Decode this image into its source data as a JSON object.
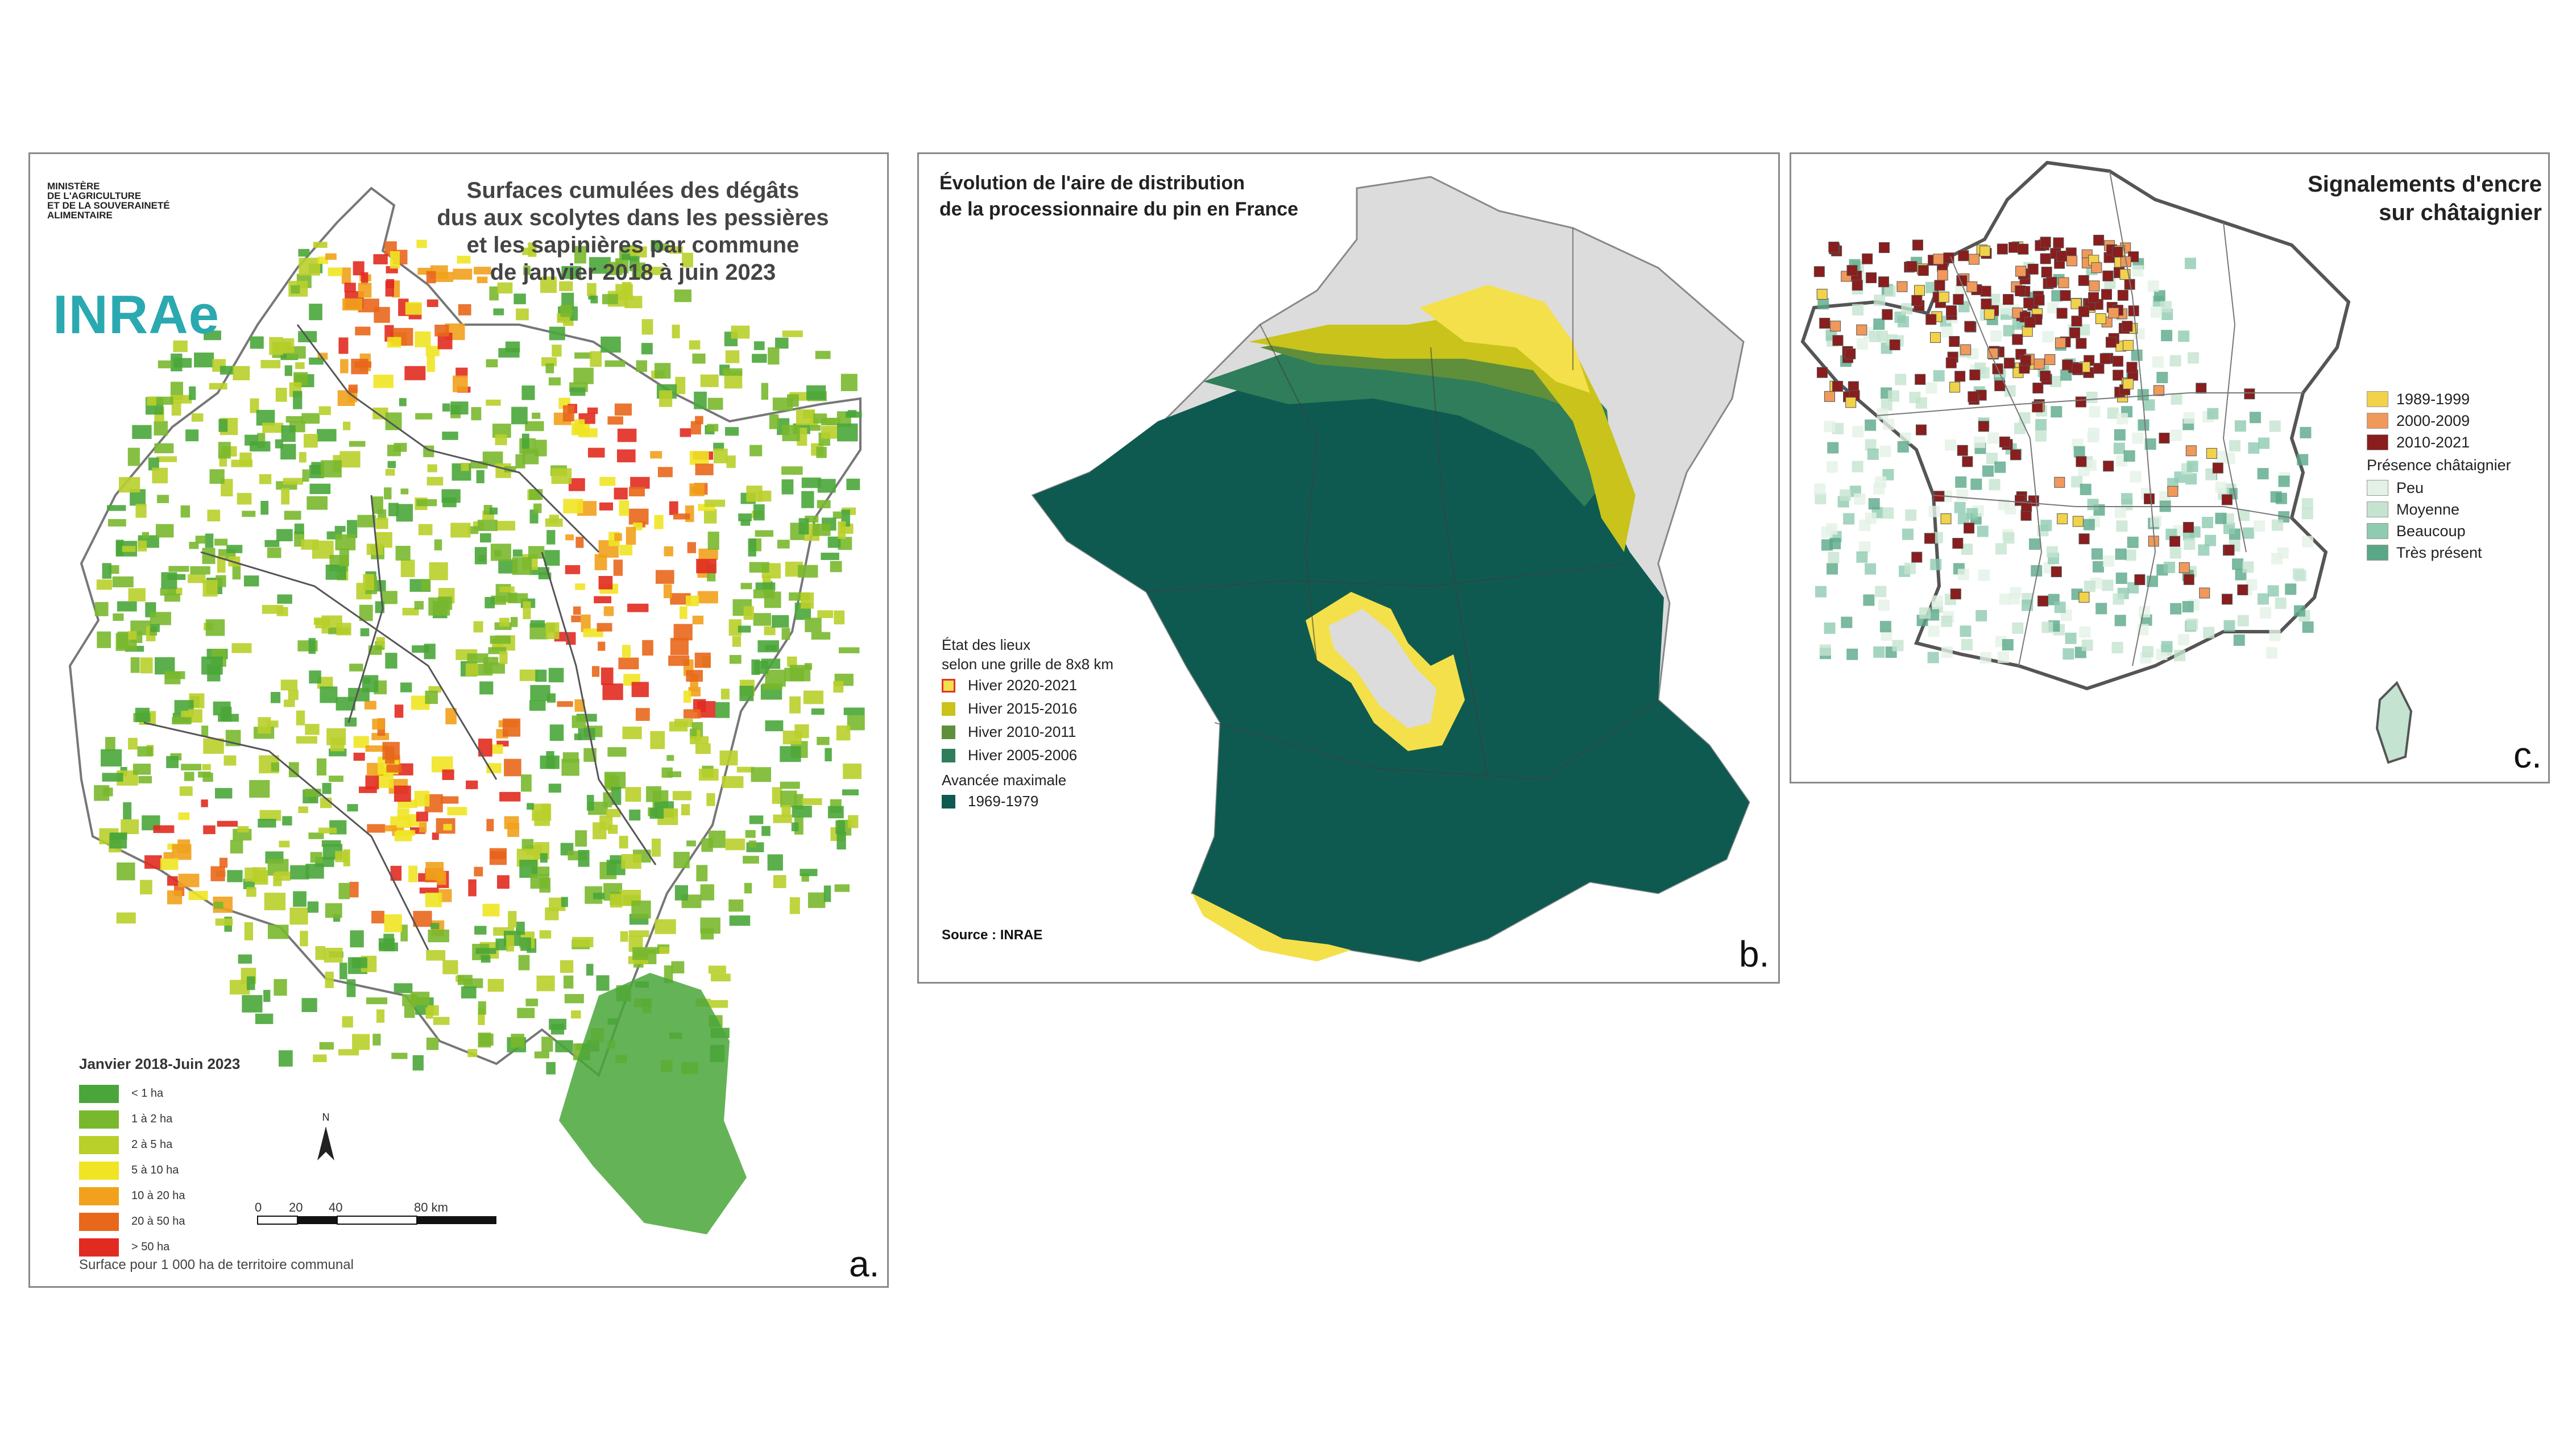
{
  "panel_a": {
    "letter": "a.",
    "title_lines": [
      "Surfaces cumulées des dégâts",
      "dus aux scolytes dans les pessières",
      "et les sapinières par commune",
      "de janvier 2018 à juin 2023"
    ],
    "ministry_lines": [
      "MINISTÈRE",
      "DE L'AGRICULTURE",
      "ET DE LA SOUVERAINETÉ",
      "ALIMENTAIRE"
    ],
    "logo_text": "INRAe",
    "legend_title": "Janvier 2018-Juin 2023",
    "legend_items": [
      {
        "label": "< 1 ha",
        "color": "#4aa63a"
      },
      {
        "label": "1 à 2 ha",
        "color": "#79b82e"
      },
      {
        "label": "2 à 5 ha",
        "color": "#b9cf2a"
      },
      {
        "label": "5 à 10 ha",
        "color": "#f0e424"
      },
      {
        "label": "10 à 20 ha",
        "color": "#f1a11c"
      },
      {
        "label": "20 à 50 ha",
        "color": "#e8671b"
      },
      {
        "label": "> 50 ha",
        "color": "#e12b20"
      }
    ],
    "scale_labels": [
      "0",
      "20",
      "40",
      "80 km"
    ],
    "north_label": "N",
    "surface_note": "Surface pour 1 000 ha de territoire communal"
  },
  "panel_b": {
    "letter": "b.",
    "title_lines": [
      "Évolution de l'aire de distribution",
      "de la processionnaire du pin en France"
    ],
    "legend_header_lines": [
      "État des lieux",
      "selon une grille de 8x8 km"
    ],
    "legend_items": [
      {
        "label": "Hiver 2020-2021",
        "color": "#f4e04a",
        "border": "#e0332a"
      },
      {
        "label": "Hiver 2015-2016",
        "color": "#c9c31c",
        "border": "#c9c31c"
      },
      {
        "label": "Hiver 2010-2011",
        "color": "#5f8f3a",
        "border": "#5f8f3a"
      },
      {
        "label": "Hiver 2005-2006",
        "color": "#2f7d5a",
        "border": "#2f7d5a"
      }
    ],
    "max_header": "Avancée maximale",
    "max_item": {
      "label": "1969-1979",
      "color": "#0f5a50"
    },
    "source": "Source   : INRAE"
  },
  "panel_c": {
    "letter": "c.",
    "title_lines": [
      "Signalements d'encre",
      "sur châtaignier"
    ],
    "period_items": [
      {
        "label": "1989-1999",
        "color": "#f1d24a"
      },
      {
        "label": "2000-2009",
        "color": "#f0995a"
      },
      {
        "label": "2010-2021",
        "color": "#8a1d1d"
      }
    ],
    "presence_header": "Présence châtaignier",
    "presence_items": [
      {
        "label": "Peu",
        "color": "#e3f1e6"
      },
      {
        "label": "Moyenne",
        "color": "#c4e3d0"
      },
      {
        "label": "Beaucoup",
        "color": "#8fcbb0"
      },
      {
        "label": "Très présent",
        "color": "#5aa788"
      }
    ]
  }
}
